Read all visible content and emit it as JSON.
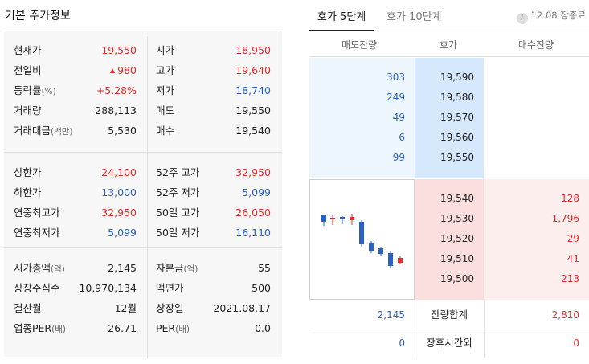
{
  "title": "기본 주가정보",
  "sections": [
    {
      "rows": [
        {
          "l1": "현재가",
          "u1": "",
          "v1": "19,550",
          "c1": "red",
          "tri": false,
          "l2": "시가",
          "u2": "",
          "v2": "18,950",
          "c2": "red"
        },
        {
          "l1": "전일비",
          "u1": "",
          "v1": "980",
          "c1": "red",
          "tri": true,
          "l2": "고가",
          "u2": "",
          "v2": "19,640",
          "c2": "red"
        },
        {
          "l1": "등락률",
          "u1": "(%)",
          "v1": "+5.28%",
          "c1": "red",
          "tri": false,
          "l2": "저가",
          "u2": "",
          "v2": "18,740",
          "c2": "blue"
        },
        {
          "l1": "거래량",
          "u1": "",
          "v1": "288,113",
          "c1": "",
          "tri": false,
          "l2": "매도",
          "u2": "",
          "v2": "19,550",
          "c2": ""
        },
        {
          "l1": "거래대금",
          "u1": "(백만)",
          "v1": "5,530",
          "c1": "",
          "tri": false,
          "l2": "매수",
          "u2": "",
          "v2": "19,540",
          "c2": ""
        }
      ]
    },
    {
      "rows": [
        {
          "l1": "상한가",
          "u1": "",
          "v1": "24,100",
          "c1": "red",
          "tri": false,
          "l2": "52주 고가",
          "u2": "",
          "v2": "32,950",
          "c2": "red"
        },
        {
          "l1": "하한가",
          "u1": "",
          "v1": "13,000",
          "c1": "blue",
          "tri": false,
          "l2": "52주 저가",
          "u2": "",
          "v2": "5,099",
          "c2": "blue"
        },
        {
          "l1": "연중최고가",
          "u1": "",
          "v1": "32,950",
          "c1": "red",
          "tri": false,
          "l2": "50일 고가",
          "u2": "",
          "v2": "26,050",
          "c2": "red"
        },
        {
          "l1": "연중최저가",
          "u1": "",
          "v1": "5,099",
          "c1": "blue",
          "tri": false,
          "l2": "50일 저가",
          "u2": "",
          "v2": "16,110",
          "c2": "blue"
        }
      ]
    },
    {
      "rows": [
        {
          "l1": "시가총액",
          "u1": "(억)",
          "v1": "2,145",
          "c1": "",
          "tri": false,
          "l2": "자본금",
          "u2": "(억)",
          "v2": "55",
          "c2": ""
        },
        {
          "l1": "상장주식수",
          "u1": "",
          "v1": "10,970,134",
          "c1": "",
          "tri": false,
          "l2": "액면가",
          "u2": "",
          "v2": "500",
          "c2": ""
        },
        {
          "l1": "결산월",
          "u1": "",
          "v1": "12월",
          "c1": "",
          "tri": false,
          "l2": "상장일",
          "u2": "",
          "v2": "2021.08.17",
          "c2": ""
        },
        {
          "l1": "업종PER",
          "u1": "(배)",
          "v1": "26.71",
          "c1": "",
          "tri": false,
          "l2": "PER",
          "u2": "(배)",
          "v2": "0.0",
          "c2": ""
        }
      ]
    }
  ],
  "orderbook": {
    "tabs": [
      {
        "label": "호가 5단계"
      },
      {
        "label": "호가 10단계"
      }
    ],
    "time": "12.08 장종료",
    "headers": {
      "ask": "매도잔량",
      "price": "호가",
      "bid": "매수잔량"
    },
    "asks": [
      {
        "qty": "303",
        "price": "19,590"
      },
      {
        "qty": "249",
        "price": "19,580"
      },
      {
        "qty": "49",
        "price": "19,570"
      },
      {
        "qty": "6",
        "price": "19,560"
      },
      {
        "qty": "99",
        "price": "19,550"
      }
    ],
    "bids": [
      {
        "price": "19,540",
        "qty": "128"
      },
      {
        "price": "19,530",
        "qty": "1,796"
      },
      {
        "price": "19,520",
        "qty": "29"
      },
      {
        "price": "19,510",
        "qty": "41"
      },
      {
        "price": "19,500",
        "qty": "213"
      }
    ],
    "total": {
      "ask": "2,145",
      "label": "잔량합계",
      "bid": "2,810"
    },
    "after": {
      "ask": "0",
      "label": "장후시간외",
      "bid": "0"
    }
  },
  "colors": {
    "up": "#e52a2a",
    "down": "#2a5fc7"
  }
}
